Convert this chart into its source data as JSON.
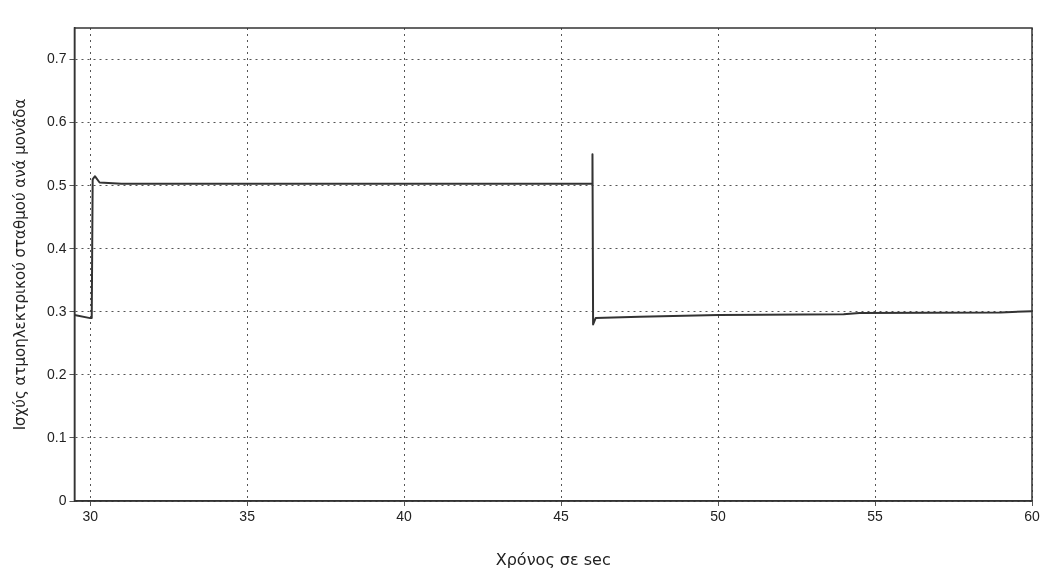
{
  "chart_data": {
    "type": "line",
    "xlabel": "Χρόνος σε sec",
    "ylabel": "Ισχύς ατμοηλεκτρικού σταθμού ανά μονάδα",
    "x": [
      29.5,
      30.0,
      30.05,
      30.08,
      30.15,
      30.3,
      31,
      46.0,
      46.0,
      46.02,
      46.1,
      47.5,
      50,
      54,
      54.5,
      59,
      60
    ],
    "series": [
      {
        "color": "#333333",
        "values": [
          0.295,
          0.29,
          0.29,
          0.51,
          0.515,
          0.505,
          0.503,
          0.503,
          0.55,
          0.28,
          0.29,
          0.292,
          0.295,
          0.296,
          0.298,
          0.299,
          0.301
        ]
      }
    ],
    "xlim": [
      29.5,
      60
    ],
    "xticks": [
      30,
      35,
      40,
      45,
      50,
      55,
      60
    ],
    "ylim": [
      0,
      0.75
    ],
    "yticks": [
      0,
      0.1,
      0.2,
      0.3,
      0.4,
      0.5,
      0.6,
      0.7
    ],
    "grid": true,
    "legend": false,
    "marker": "none",
    "line_style": "solid"
  }
}
